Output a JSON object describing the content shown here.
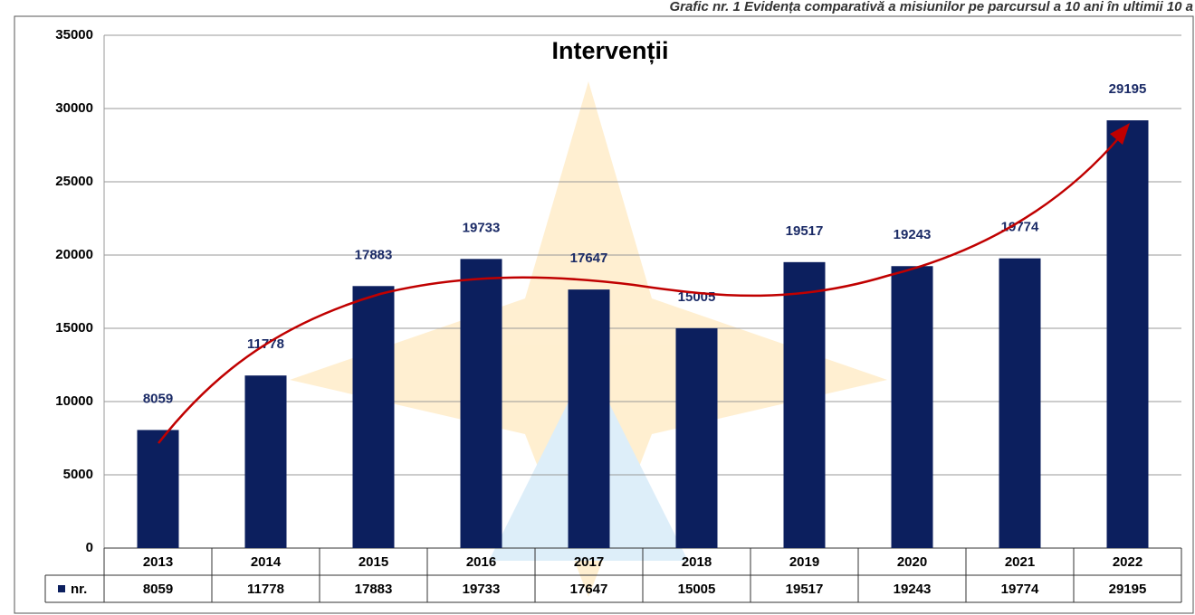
{
  "caption": "Grafic nr. 1 Evidența comparativă a misiunilor pe parcursul a 10 ani în ultimii 10 a",
  "chart_data": {
    "type": "bar",
    "title": "Intervenții",
    "categories": [
      "2013",
      "2014",
      "2015",
      "2016",
      "2017",
      "2018",
      "2019",
      "2020",
      "2021",
      "2022"
    ],
    "series": [
      {
        "name": "nr.",
        "color": "#0c1f5e",
        "values": [
          8059,
          11778,
          17883,
          19733,
          17647,
          15005,
          19517,
          19243,
          19774,
          29195
        ]
      }
    ],
    "ylim": [
      0,
      35000
    ],
    "yticks": [
      0,
      5000,
      10000,
      15000,
      20000,
      25000,
      30000,
      35000
    ],
    "grid": true
  }
}
